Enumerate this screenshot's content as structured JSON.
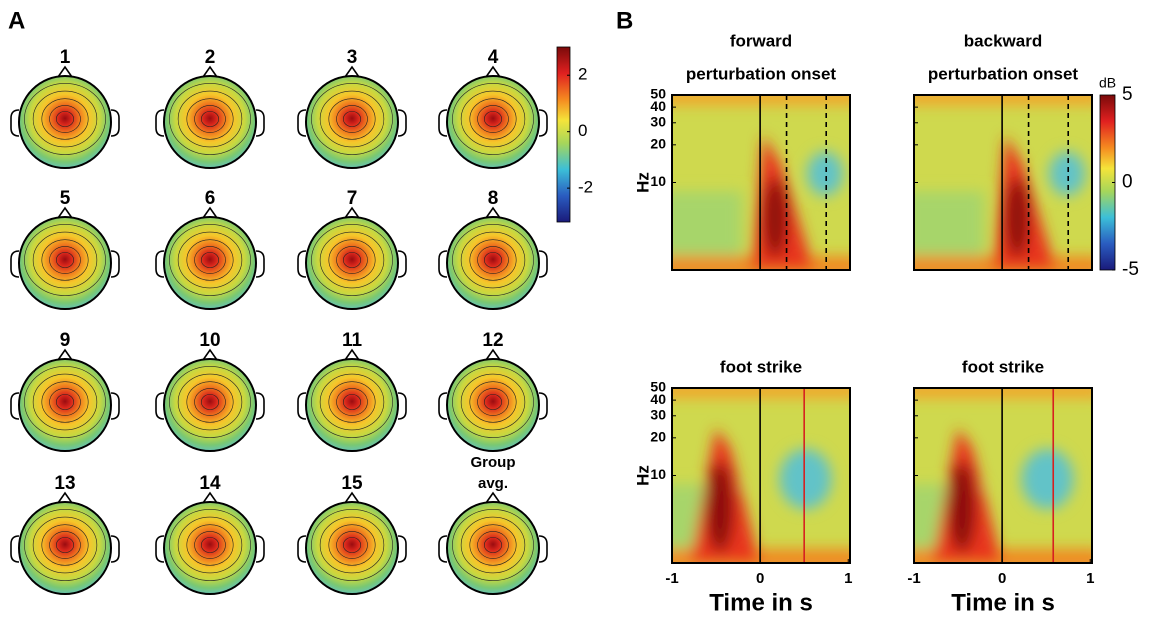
{
  "panel_a": {
    "label": "A",
    "maps": [
      [
        "1"
      ],
      [
        "2"
      ],
      [
        "3"
      ],
      [
        "4"
      ],
      [
        "5"
      ],
      [
        "6"
      ],
      [
        "7"
      ],
      [
        "8"
      ],
      [
        "9"
      ],
      [
        "10"
      ],
      [
        "11"
      ],
      [
        "12"
      ],
      [
        "13"
      ],
      [
        "14"
      ],
      [
        "15"
      ],
      [
        "Group",
        "avg."
      ]
    ],
    "colorbar": {
      "lim": [
        -3.2,
        3
      ],
      "ticks": [
        -2,
        0,
        2
      ]
    }
  },
  "panel_b": {
    "label": "B",
    "y_label": "Hz",
    "x_label": "Time in s",
    "log_y": true,
    "ylim": [
      2,
      50
    ],
    "yticks": [
      10,
      20,
      30,
      40,
      50
    ],
    "xlim": [
      -1,
      1.02
    ],
    "xticks": [
      -1,
      0,
      1
    ],
    "colorbar": {
      "unit": "dB",
      "lim": [
        -5,
        5
      ],
      "ticks": [
        -5,
        0,
        5
      ]
    },
    "plots": [
      {
        "title": [
          "forward",
          "perturbation onset"
        ],
        "events": [
          {
            "x": 0,
            "style": "solid",
            "color": "#000000"
          },
          {
            "x": 0.3,
            "style": "dashed",
            "color": "#000000"
          },
          {
            "x": 0.75,
            "style": "dashed",
            "color": "#000000"
          }
        ]
      },
      {
        "title": [
          "backward",
          "perturbation onset"
        ],
        "events": [
          {
            "x": 0,
            "style": "solid",
            "color": "#000000"
          },
          {
            "x": 0.3,
            "style": "dashed",
            "color": "#000000"
          },
          {
            "x": 0.75,
            "style": "dashed",
            "color": "#000000"
          }
        ]
      },
      {
        "title": [
          "foot strike"
        ],
        "events": [
          {
            "x": 0,
            "style": "solid",
            "color": "#000000"
          },
          {
            "x": 0.5,
            "style": "solid",
            "color": "#d62020"
          }
        ]
      },
      {
        "title": [
          "foot strike"
        ],
        "events": [
          {
            "x": 0,
            "style": "solid",
            "color": "#000000"
          },
          {
            "x": 0.58,
            "style": "solid",
            "color": "#d62020"
          }
        ]
      }
    ]
  }
}
